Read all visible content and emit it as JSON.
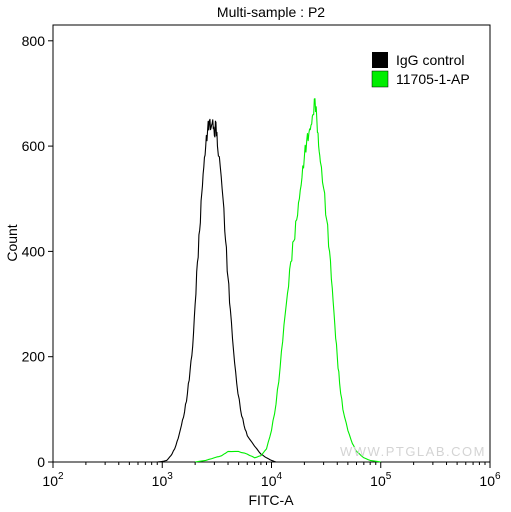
{
  "chart_data": {
    "type": "line",
    "title": "Multi-sample : P2",
    "xlabel": "FITC-A",
    "ylabel": "Count",
    "x_scale": "log",
    "xlim": [
      100,
      1000000
    ],
    "ylim": [
      0,
      830
    ],
    "x_ticks": [
      {
        "base": "10",
        "exp": "2"
      },
      {
        "base": "10",
        "exp": "3"
      },
      {
        "base": "10",
        "exp": "4"
      },
      {
        "base": "10",
        "exp": "5"
      },
      {
        "base": "10",
        "exp": "6"
      }
    ],
    "y_ticks": [
      "0",
      "200",
      "400",
      "600",
      "800"
    ],
    "y_tick_values": [
      0,
      200,
      400,
      600,
      800
    ],
    "legend_position": "top-right",
    "grid": false,
    "watermark": "WWW.PTGLAB.COM",
    "series": [
      {
        "name": "IgG control",
        "color": "#000000",
        "points": [
          [
            900,
            0
          ],
          [
            1000,
            1
          ],
          [
            1100,
            3
          ],
          [
            1200,
            12
          ],
          [
            1300,
            25
          ],
          [
            1400,
            45
          ],
          [
            1500,
            70
          ],
          [
            1600,
            95
          ],
          [
            1700,
            130
          ],
          [
            1800,
            175
          ],
          [
            1900,
            220
          ],
          [
            2000,
            300
          ],
          [
            2100,
            380
          ],
          [
            2200,
            440
          ],
          [
            2300,
            510
          ],
          [
            2400,
            560
          ],
          [
            2500,
            600
          ],
          [
            2600,
            630
          ],
          [
            2700,
            648
          ],
          [
            2800,
            635
          ],
          [
            2900,
            650
          ],
          [
            3000,
            620
          ],
          [
            3100,
            645
          ],
          [
            3200,
            600
          ],
          [
            3400,
            560
          ],
          [
            3600,
            500
          ],
          [
            3800,
            420
          ],
          [
            4000,
            350
          ],
          [
            4200,
            290
          ],
          [
            4500,
            210
          ],
          [
            4800,
            150
          ],
          [
            5200,
            100
          ],
          [
            5600,
            70
          ],
          [
            6000,
            50
          ],
          [
            7000,
            30
          ],
          [
            8000,
            15
          ],
          [
            9000,
            8
          ],
          [
            10000,
            3
          ],
          [
            11000,
            0
          ]
        ]
      },
      {
        "name": "11705-1-AP",
        "color": "#00ee00",
        "points": [
          [
            2000,
            0
          ],
          [
            2500,
            3
          ],
          [
            3000,
            8
          ],
          [
            3500,
            12
          ],
          [
            4000,
            20
          ],
          [
            5000,
            20
          ],
          [
            6000,
            15
          ],
          [
            7000,
            8
          ],
          [
            8000,
            12
          ],
          [
            9000,
            25
          ],
          [
            10000,
            60
          ],
          [
            11000,
            110
          ],
          [
            12000,
            180
          ],
          [
            13000,
            260
          ],
          [
            14000,
            320
          ],
          [
            15000,
            380
          ],
          [
            16000,
            420
          ],
          [
            17000,
            460
          ],
          [
            18000,
            500
          ],
          [
            19000,
            540
          ],
          [
            20000,
            580
          ],
          [
            21000,
            610
          ],
          [
            22000,
            625
          ],
          [
            23000,
            640
          ],
          [
            24000,
            660
          ],
          [
            25000,
            690
          ],
          [
            26000,
            650
          ],
          [
            27000,
            600
          ],
          [
            28000,
            570
          ],
          [
            30000,
            520
          ],
          [
            32000,
            460
          ],
          [
            34000,
            400
          ],
          [
            36000,
            330
          ],
          [
            38000,
            260
          ],
          [
            40000,
            200
          ],
          [
            42000,
            150
          ],
          [
            45000,
            100
          ],
          [
            50000,
            60
          ],
          [
            55000,
            35
          ],
          [
            60000,
            20
          ],
          [
            70000,
            8
          ],
          [
            80000,
            3
          ],
          [
            100000,
            0
          ]
        ]
      }
    ]
  }
}
